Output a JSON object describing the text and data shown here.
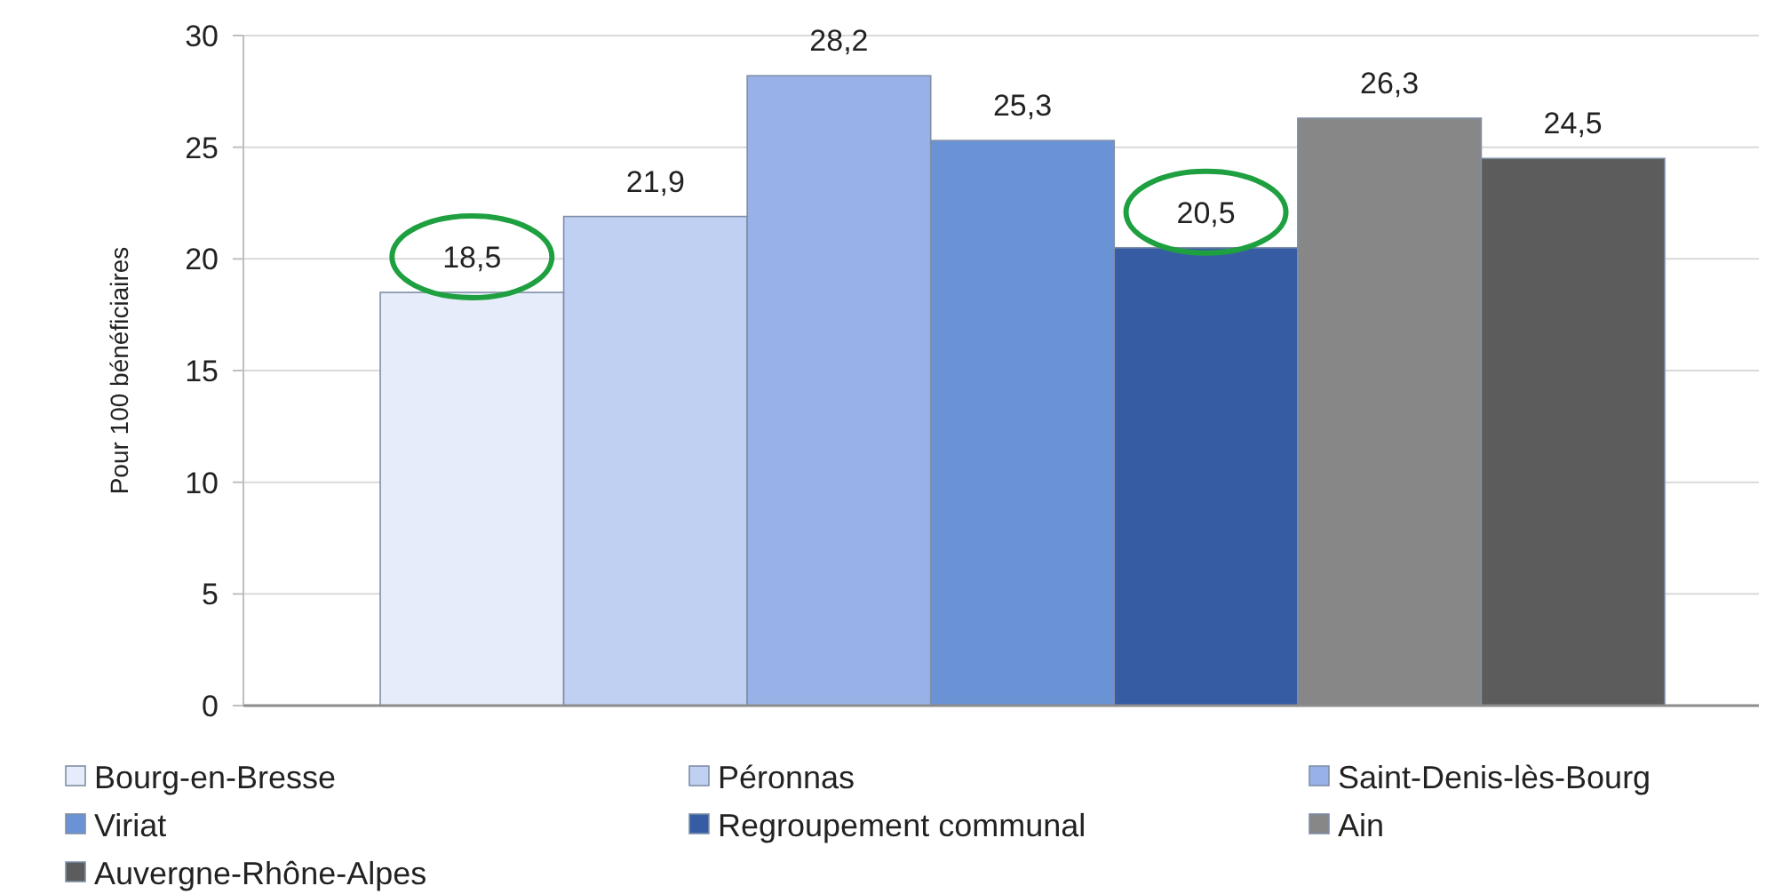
{
  "chart_data": {
    "type": "bar",
    "ylabel": "Pour 100 bénéficiaires",
    "categories": [
      null
    ],
    "series": [
      {
        "name": "Bourg-en-Bresse",
        "color": "#e6ecfa",
        "values": [
          18.5
        ],
        "value_labels": [
          "18,5"
        ]
      },
      {
        "name": "Péronnas",
        "color": "#bfd0f2",
        "values": [
          21.9
        ],
        "value_labels": [
          "21,9"
        ]
      },
      {
        "name": "Saint-Denis-lès-Bourg",
        "color": "#98b2e8",
        "values": [
          28.2
        ],
        "value_labels": [
          "28,2"
        ]
      },
      {
        "name": "Viriat",
        "color": "#6a93d6",
        "values": [
          25.3
        ],
        "value_labels": [
          "25,3"
        ]
      },
      {
        "name": "Regroupement communal",
        "color": "#365ca3",
        "values": [
          20.5
        ],
        "value_labels": [
          "20,5"
        ]
      },
      {
        "name": "Ain",
        "color": "#878787",
        "values": [
          26.3
        ],
        "value_labels": [
          "26,3"
        ]
      },
      {
        "name": "Auvergne-Rhône-Alpes",
        "color": "#5c5c5c",
        "values": [
          24.5
        ],
        "value_labels": [
          "24,5"
        ]
      }
    ],
    "ylim": [
      0,
      30
    ],
    "yticks": [
      0,
      5,
      10,
      15,
      20,
      25,
      30
    ],
    "grid": "y",
    "legend": "bottom"
  }
}
